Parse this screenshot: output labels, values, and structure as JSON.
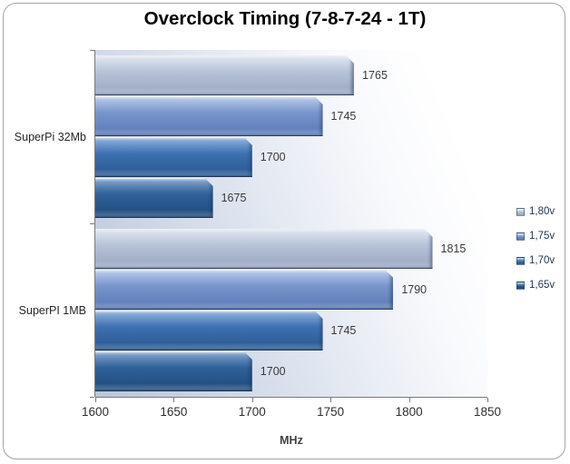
{
  "title": "Overclock Timing (7-8-7-24 - 1T)",
  "chart_data": {
    "type": "bar",
    "orientation": "horizontal",
    "title": "Overclock Timing (7-8-7-24 - 1T)",
    "categories": [
      "SuperPi 32Mb",
      "SuperPI 1MB"
    ],
    "series": [
      {
        "name": "1,80v",
        "values": [
          1765,
          1815
        ],
        "color_top": "#ccd6e8",
        "color_bottom": "#98a6c0"
      },
      {
        "name": "1,75v",
        "values": [
          1745,
          1790
        ],
        "color_top": "#8ea9dc",
        "color_bottom": "#5878b5"
      },
      {
        "name": "1,70v",
        "values": [
          1700,
          1745
        ],
        "color_top": "#4e84c8",
        "color_bottom": "#27568f"
      },
      {
        "name": "1,65v",
        "values": [
          1675,
          1700
        ],
        "color_top": "#3c71af",
        "color_bottom": "#1e4979"
      }
    ],
    "xlabel": "MHz",
    "xlim": [
      1600,
      1850
    ],
    "xticks": [
      "1600",
      "1650",
      "1700",
      "1750",
      "1800",
      "1850"
    ],
    "legend_position": "right",
    "grid": false,
    "data_labels": true
  }
}
